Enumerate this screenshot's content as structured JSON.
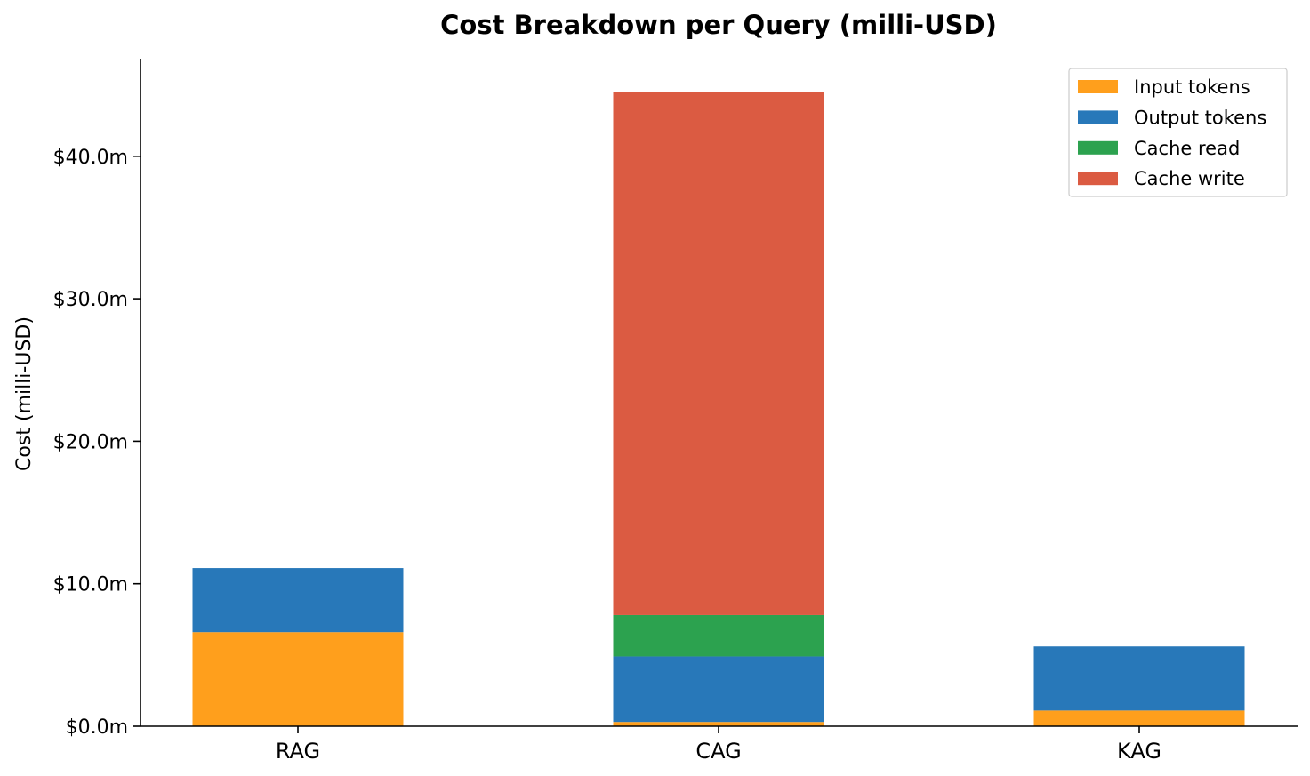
{
  "chart_data": {
    "type": "bar",
    "stacked": true,
    "title": "Cost Breakdown per Query (milli-USD)",
    "xlabel": "",
    "ylabel": "Cost (milli-USD)",
    "ylim": [
      0,
      47
    ],
    "yticks": [
      0,
      10,
      20,
      30,
      40
    ],
    "ytick_labels": [
      "$0.0m",
      "$10.0m",
      "$20.0m",
      "$30.0m",
      "$40.0m"
    ],
    "categories": [
      "RAG",
      "CAG",
      "KAG"
    ],
    "series": [
      {
        "name": "Input tokens",
        "color": "#ff9f1c",
        "values": [
          6.6,
          0.3,
          1.1
        ]
      },
      {
        "name": "Output tokens",
        "color": "#2878b9",
        "values": [
          4.5,
          4.6,
          4.5
        ]
      },
      {
        "name": "Cache read",
        "color": "#2ca24f",
        "values": [
          0,
          2.9,
          0
        ]
      },
      {
        "name": "Cache write",
        "color": "#db5b42",
        "values": [
          0,
          36.7,
          0
        ]
      }
    ],
    "grid": false,
    "legend": "top-right"
  }
}
